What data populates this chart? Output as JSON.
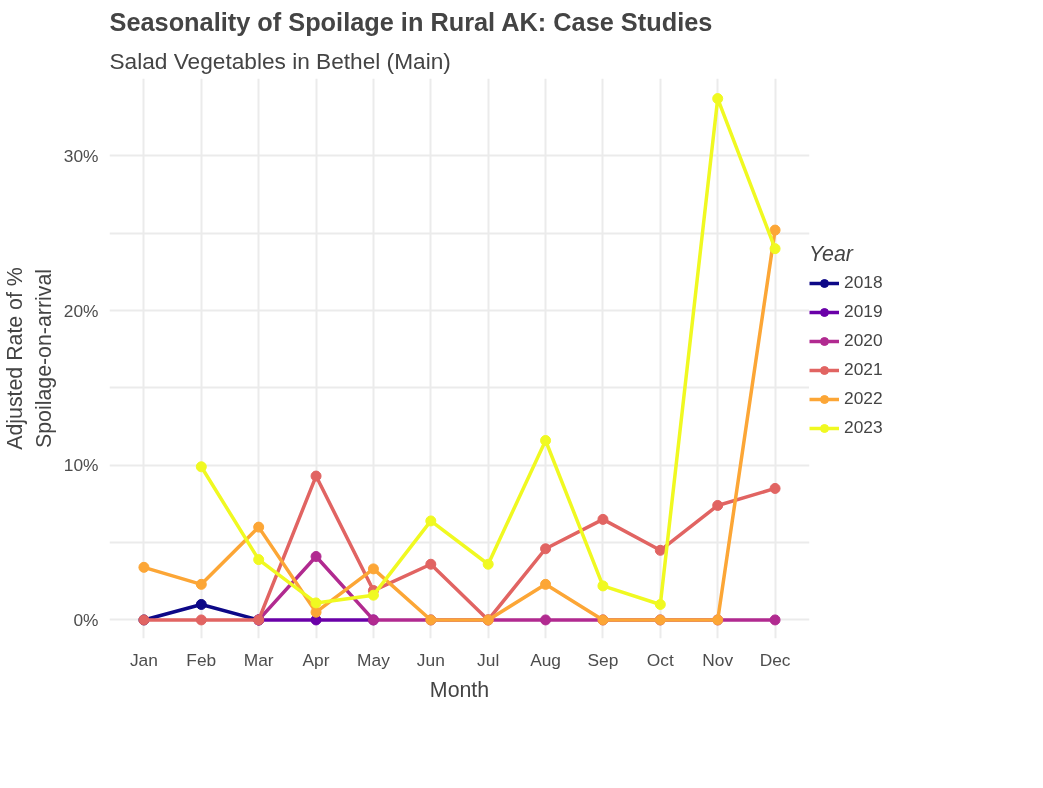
{
  "chart_data": {
    "type": "line",
    "title": "Seasonality of Spoilage in Rural AK: Case Studies",
    "subtitle": "Salad Vegetables in Bethel (Main)",
    "xlabel": "Month",
    "ylabel": "Adjusted Rate of %\nSpoilage-on-arrival",
    "legend_title": "Year",
    "categories": [
      "Jan",
      "Feb",
      "Mar",
      "Apr",
      "May",
      "Jun",
      "Jul",
      "Aug",
      "Sep",
      "Oct",
      "Nov",
      "Dec"
    ],
    "series": [
      {
        "name": "2018",
        "color": "#0d0887",
        "values": [
          0,
          1.0,
          0,
          null,
          null,
          null,
          null,
          null,
          null,
          null,
          null,
          null
        ]
      },
      {
        "name": "2019",
        "color": "#6a00a8",
        "values": [
          null,
          null,
          0,
          0,
          0,
          null,
          null,
          null,
          null,
          null,
          null,
          null
        ]
      },
      {
        "name": "2020",
        "color": "#b12a90",
        "values": [
          null,
          null,
          0,
          4.1,
          0,
          0,
          0,
          0,
          0,
          0,
          0,
          0
        ]
      },
      {
        "name": "2021",
        "color": "#e16462",
        "values": [
          0,
          0,
          0,
          9.3,
          1.9,
          3.6,
          0,
          4.6,
          6.5,
          4.5,
          7.4,
          8.5
        ]
      },
      {
        "name": "2022",
        "color": "#fca636",
        "values": [
          3.4,
          2.3,
          6.0,
          0.5,
          3.3,
          0,
          0,
          2.3,
          0,
          0,
          0,
          25.2
        ]
      },
      {
        "name": "2023",
        "color": "#f0f921",
        "values": [
          null,
          9.9,
          3.9,
          1.1,
          1.6,
          6.4,
          3.6,
          11.6,
          2.2,
          1.0,
          33.7,
          24.0
        ]
      }
    ],
    "ylim": [
      -1.2,
      35.0
    ],
    "yticks": [
      {
        "value": 0,
        "label": "0%"
      },
      {
        "value": 5,
        "label": null
      },
      {
        "value": 10,
        "label": "10%"
      },
      {
        "value": 15,
        "label": null
      },
      {
        "value": 20,
        "label": "20%"
      },
      {
        "value": 25,
        "label": null
      },
      {
        "value": 30,
        "label": "30%"
      }
    ],
    "grid": true,
    "legend": "right",
    "marker": "circle",
    "line_style": "solid"
  }
}
